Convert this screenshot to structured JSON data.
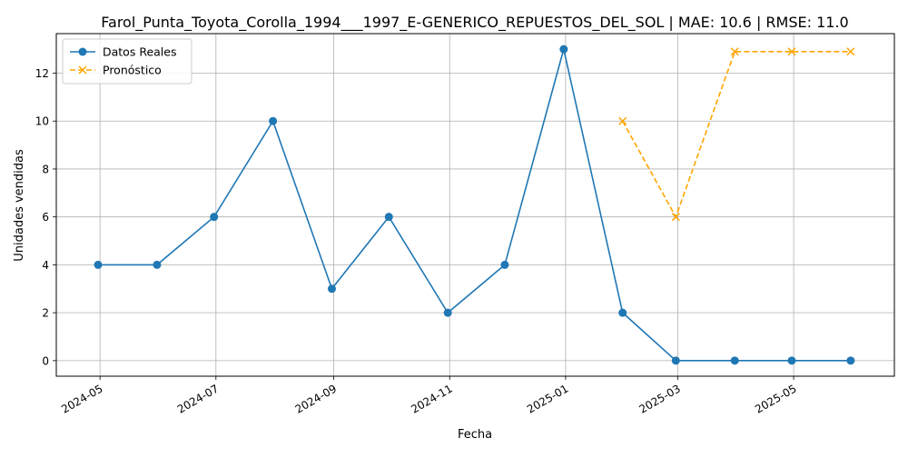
{
  "chart_data": {
    "type": "line",
    "title": "Farol_Punta_Toyota_Corolla_1994___1997_E-GENERICO_REPUESTOS_DEL_SOL | MAE: 10.6 | RMSE: 11.0",
    "xlabel": "Fecha",
    "ylabel": "Unidades vendidas",
    "xlim": [
      "2024-04-08",
      "2025-06-23"
    ],
    "ylim": [
      -0.65,
      13.65
    ],
    "grid": true,
    "legend_position": "upper-left",
    "x_ticks": [
      "2024-05-01",
      "2024-07-01",
      "2024-09-01",
      "2024-11-01",
      "2025-01-01",
      "2025-03-01",
      "2025-05-01"
    ],
    "x_tick_labels": [
      "2024-05",
      "2024-07",
      "2024-09",
      "2024-11",
      "2025-01",
      "2025-03",
      "2025-05"
    ],
    "y_ticks": [
      0,
      2,
      4,
      6,
      8,
      10,
      12
    ],
    "series": [
      {
        "name": "Datos Reales",
        "color": "#1f77b4",
        "line_style": "solid",
        "marker": "circle",
        "x": [
          "2024-04-30",
          "2024-05-31",
          "2024-06-30",
          "2024-07-31",
          "2024-08-31",
          "2024-09-30",
          "2024-10-31",
          "2024-11-30",
          "2024-12-31",
          "2025-01-31",
          "2025-02-28",
          "2025-03-31",
          "2025-04-30",
          "2025-05-31"
        ],
        "y": [
          4,
          4,
          6,
          10,
          3,
          6,
          2,
          4,
          13,
          2,
          0,
          0,
          0,
          0
        ]
      },
      {
        "name": "Pronóstico",
        "color": "#ffa500",
        "line_style": "dashed",
        "marker": "x",
        "x": [
          "2025-01-31",
          "2025-02-28",
          "2025-03-31",
          "2025-04-30",
          "2025-05-31"
        ],
        "y": [
          10,
          6,
          12.9,
          12.9,
          12.9
        ]
      }
    ]
  }
}
